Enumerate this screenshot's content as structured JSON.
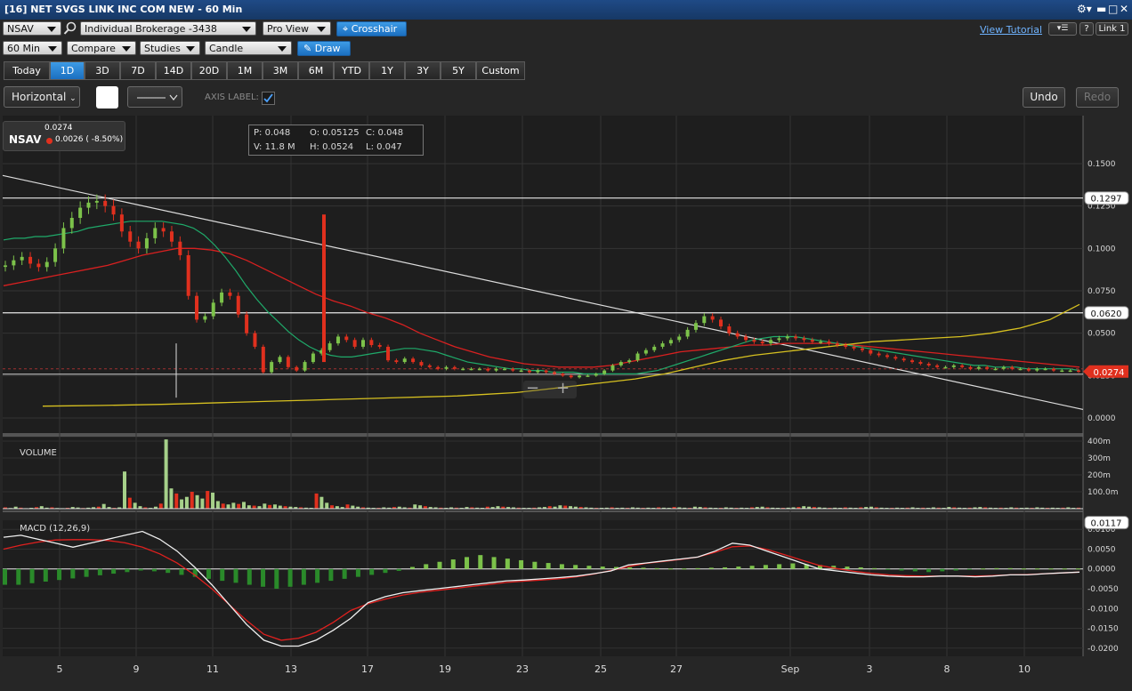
{
  "window": {
    "title": "[16] NET SVGS LINK INC COM NEW - 60 Min"
  },
  "toolbar": {
    "symbol": "NSAV",
    "account": "Individual Brokerage -3438",
    "view": "Pro View",
    "crosshair": "Crosshair",
    "view_tutorial": "View Tutorial",
    "help": "?",
    "link": "Link 1",
    "interval": "60 Min",
    "compare": "Compare",
    "studies": "Studies",
    "chart_type": "Candle",
    "draw": "Draw"
  },
  "ranges": [
    "Today",
    "1D",
    "3D",
    "7D",
    "14D",
    "20D",
    "1M",
    "3M",
    "6M",
    "YTD",
    "1Y",
    "3Y",
    "5Y",
    "Custom"
  ],
  "selected_range": "1D",
  "draw_bar": {
    "line_type": "Horizontal",
    "axis_label": "AXIS LABEL:",
    "axis_label_checked": true,
    "undo": "Undo",
    "redo": "Redo"
  },
  "quote": {
    "symbol": "NSAV",
    "last": "0.0274",
    "change": "0.0026 ( -8.50%)"
  },
  "ohlc": {
    "p": "P: 0.048",
    "o": "O: 0.05125",
    "c": "C: 0.048",
    "v": "V: 11.8 M",
    "h": "H: 0.0524",
    "l": "L: 0.047"
  },
  "colors": {
    "up": "#7cc24a",
    "down": "#e0301e",
    "ma_short": "#1faa6a",
    "ma_long": "#d82020",
    "ma_slow": "#d6c020",
    "accent": "#1b6fc0"
  },
  "chart_data": {
    "type": "candlestick",
    "y_ticks": [
      "0.1500",
      "0.1250",
      "0.1000",
      "0.0750",
      "0.0500",
      "0.0250",
      "0.0000"
    ],
    "ylim": [
      0,
      0.15
    ],
    "x_ticks": [
      "5",
      "9",
      "11",
      "13",
      "17",
      "19",
      "23",
      "25",
      "27",
      "Sep",
      "3",
      "8",
      "10"
    ],
    "price_labels": [
      {
        "value": 0.1297,
        "label": "0.1297",
        "style": "line"
      },
      {
        "value": 0.062,
        "label": "0.0620",
        "style": "line"
      },
      {
        "value": 0.0274,
        "label": "0.0274",
        "style": "last"
      }
    ],
    "trendline": {
      "from": 0.143,
      "to": 0.005
    },
    "close": [
      0.09,
      0.093,
      0.095,
      0.091,
      0.089,
      0.092,
      0.1,
      0.112,
      0.118,
      0.124,
      0.127,
      0.128,
      0.125,
      0.12,
      0.11,
      0.104,
      0.1,
      0.106,
      0.112,
      0.11,
      0.104,
      0.096,
      0.072,
      0.058,
      0.06,
      0.068,
      0.074,
      0.072,
      0.061,
      0.05,
      0.042,
      0.027,
      0.033,
      0.036,
      0.03,
      0.028,
      0.033,
      0.038,
      0.04,
      0.044,
      0.048,
      0.046,
      0.042,
      0.046,
      0.043,
      0.042,
      0.034,
      0.033,
      0.035,
      0.033,
      0.031,
      0.03,
      0.029,
      0.03,
      0.029,
      0.029,
      0.029,
      0.029,
      0.028,
      0.029,
      0.029,
      0.028,
      0.028,
      0.027,
      0.028,
      0.027,
      0.026,
      0.025,
      0.024,
      0.025,
      0.025,
      0.026,
      0.028,
      0.031,
      0.033,
      0.034,
      0.038,
      0.04,
      0.042,
      0.044,
      0.046,
      0.048,
      0.052,
      0.056,
      0.06,
      0.058,
      0.054,
      0.05,
      0.048,
      0.046,
      0.045,
      0.044,
      0.046,
      0.047,
      0.048,
      0.047,
      0.046,
      0.045,
      0.045,
      0.044,
      0.043,
      0.042,
      0.041,
      0.04,
      0.038,
      0.037,
      0.036,
      0.035,
      0.034,
      0.033,
      0.032,
      0.031,
      0.03,
      0.03,
      0.031,
      0.03,
      0.029,
      0.03,
      0.029,
      0.029,
      0.03,
      0.029,
      0.029,
      0.028,
      0.029,
      0.029,
      0.028,
      0.028,
      0.028,
      0.0274
    ],
    "ma_short": [
      0.105,
      0.106,
      0.106,
      0.107,
      0.107,
      0.108,
      0.109,
      0.11,
      0.112,
      0.113,
      0.114,
      0.115,
      0.116,
      0.116,
      0.116,
      0.116,
      0.115,
      0.114,
      0.112,
      0.108,
      0.102,
      0.095,
      0.087,
      0.078,
      0.07,
      0.063,
      0.057,
      0.051,
      0.046,
      0.042,
      0.039,
      0.037,
      0.036,
      0.036,
      0.037,
      0.038,
      0.039,
      0.04,
      0.041,
      0.041,
      0.04,
      0.039,
      0.037,
      0.035,
      0.033,
      0.032,
      0.031,
      0.03,
      0.029,
      0.029,
      0.028,
      0.028,
      0.027,
      0.027,
      0.027,
      0.026,
      0.026,
      0.026,
      0.026,
      0.026,
      0.026,
      0.027,
      0.028,
      0.03,
      0.032,
      0.034,
      0.036,
      0.038,
      0.04,
      0.042,
      0.044,
      0.046,
      0.047,
      0.048,
      0.048,
      0.048,
      0.047,
      0.046,
      0.045,
      0.044,
      0.043,
      0.042,
      0.041,
      0.04,
      0.039,
      0.038,
      0.037,
      0.036,
      0.035,
      0.034,
      0.033,
      0.032,
      0.031,
      0.031,
      0.03,
      0.03,
      0.03,
      0.029,
      0.029,
      0.029,
      0.029,
      0.029,
      0.028
    ],
    "ma_long": [
      0.078,
      0.08,
      0.082,
      0.084,
      0.086,
      0.088,
      0.09,
      0.093,
      0.096,
      0.098,
      0.1,
      0.1,
      0.099,
      0.097,
      0.093,
      0.088,
      0.083,
      0.078,
      0.073,
      0.069,
      0.066,
      0.062,
      0.059,
      0.055,
      0.05,
      0.046,
      0.042,
      0.039,
      0.036,
      0.034,
      0.032,
      0.031,
      0.03,
      0.03,
      0.03,
      0.031,
      0.033,
      0.035,
      0.037,
      0.039,
      0.04,
      0.041,
      0.042,
      0.043,
      0.043,
      0.044,
      0.044,
      0.044,
      0.044,
      0.043,
      0.042,
      0.041,
      0.04,
      0.039,
      0.038,
      0.037,
      0.036,
      0.035,
      0.034,
      0.033,
      0.032,
      0.031,
      0.03
    ],
    "ma_slow": [
      0.007,
      0.0072,
      0.0074,
      0.0077,
      0.008,
      0.0085,
      0.009,
      0.0095,
      0.01,
      0.0105,
      0.011,
      0.0115,
      0.012,
      0.0125,
      0.013,
      0.014,
      0.015,
      0.017,
      0.019,
      0.021,
      0.023,
      0.026,
      0.03,
      0.034,
      0.037,
      0.039,
      0.041,
      0.043,
      0.045,
      0.046,
      0.047,
      0.048,
      0.05,
      0.053,
      0.058,
      0.067
    ],
    "volume": {
      "label": "VOLUME",
      "y_ticks": [
        "400m",
        "300m",
        "200m",
        "100.0m"
      ],
      "ylim": [
        0,
        400
      ],
      "values": [
        8,
        4,
        12,
        6,
        3,
        5,
        9,
        15,
        6,
        8,
        4,
        3,
        5,
        10,
        7,
        4,
        6,
        9,
        12,
        28,
        10,
        5,
        8,
        220,
        65,
        35,
        15,
        8,
        5,
        12,
        30,
        410,
        120,
        90,
        55,
        70,
        100,
        80,
        60,
        105,
        95,
        45,
        30,
        25,
        35,
        28,
        40,
        20,
        18,
        15,
        30,
        22,
        25,
        18,
        15,
        12,
        10,
        8,
        6,
        5,
        90,
        70,
        35,
        20,
        15,
        10,
        25,
        18,
        12,
        8,
        6,
        5,
        5,
        8,
        6,
        10,
        12,
        8,
        6,
        25,
        20,
        15,
        10,
        8,
        6,
        5,
        8,
        6,
        5,
        10,
        8,
        6,
        5,
        12,
        10,
        15,
        12,
        10,
        8,
        6,
        5,
        5,
        6,
        8,
        10,
        15,
        12,
        20,
        18,
        15,
        12,
        10,
        8,
        6,
        5,
        5,
        6,
        8,
        5,
        6,
        5,
        8,
        6,
        5,
        6,
        5,
        8,
        6,
        5,
        10,
        8,
        6,
        5,
        12,
        10,
        8,
        6,
        5,
        5,
        8,
        6,
        5,
        6,
        5,
        8,
        10,
        12,
        8,
        6,
        5,
        5,
        6,
        8,
        10,
        15,
        12,
        10,
        8,
        6,
        5,
        6,
        5,
        8,
        6,
        5,
        8,
        10,
        12,
        8,
        6,
        5,
        5,
        6,
        5,
        6,
        8,
        5,
        6,
        5,
        8,
        6,
        5,
        10,
        8,
        6,
        5,
        6,
        8,
        10,
        8,
        6,
        5,
        6,
        5,
        8,
        6,
        5,
        6,
        5,
        8,
        6,
        5,
        6,
        5,
        6,
        8,
        5,
        6
      ]
    },
    "macd": {
      "label": "MACD (12,26,9)",
      "y_ticks": [
        "0.0100",
        "0.0050",
        "0.0000",
        "-0.0050",
        "-0.0100",
        "-0.0150",
        "-0.0200"
      ],
      "ylim": [
        -0.0205,
        0.0105
      ],
      "last_label": "0.0117",
      "macd_line": [
        0.008,
        0.0085,
        0.0075,
        0.0065,
        0.0055,
        0.0065,
        0.0075,
        0.0085,
        0.0095,
        0.0075,
        0.0045,
        0.0005,
        -0.004,
        -0.009,
        -0.014,
        -0.018,
        -0.0195,
        -0.0195,
        -0.018,
        -0.0155,
        -0.0125,
        -0.0085,
        -0.007,
        -0.006,
        -0.0055,
        -0.005,
        -0.0045,
        -0.004,
        -0.0035,
        -0.003,
        -0.0028,
        -0.0025,
        -0.0022,
        -0.0018,
        -0.0012,
        -0.0005,
        0.001,
        0.0015,
        0.002,
        0.0025,
        0.003,
        0.0045,
        0.0065,
        0.006,
        0.0045,
        0.003,
        0.0015,
        0.0,
        -0.0005,
        -0.001,
        -0.0015,
        -0.0018,
        -0.002,
        -0.002,
        -0.0018,
        -0.0018,
        -0.002,
        -0.0018,
        -0.0015,
        -0.0015,
        -0.0012,
        -0.001,
        -0.0008
      ],
      "signal_line": [
        0.005,
        0.006,
        0.0068,
        0.0073,
        0.0074,
        0.0074,
        0.0072,
        0.0066,
        0.0055,
        0.0038,
        0.0015,
        -0.0015,
        -0.005,
        -0.009,
        -0.013,
        -0.0165,
        -0.018,
        -0.0175,
        -0.016,
        -0.0135,
        -0.0105,
        -0.0088,
        -0.0076,
        -0.0066,
        -0.0059,
        -0.0054,
        -0.0049,
        -0.0044,
        -0.0039,
        -0.0034,
        -0.0031,
        -0.0028,
        -0.0025,
        -0.002,
        -0.0013,
        -0.0004,
        0.0006,
        0.0014,
        0.0019,
        0.0024,
        0.003,
        0.0042,
        0.0056,
        0.0058,
        0.0049,
        0.0036,
        0.0022,
        0.0009,
        0.0001,
        -0.0006,
        -0.0011,
        -0.0015,
        -0.0017,
        -0.0018,
        -0.0018,
        -0.0018,
        -0.0018,
        -0.0017,
        -0.0015,
        -0.0014,
        -0.0012,
        -0.001,
        -0.0008
      ],
      "histogram": [
        -0.004,
        -0.004,
        -0.0036,
        -0.0032,
        -0.0028,
        -0.0024,
        -0.002,
        -0.0016,
        -0.0012,
        -0.0008,
        -0.0004,
        -0.0006,
        -0.001,
        -0.0015,
        -0.002,
        -0.0025,
        -0.003,
        -0.0035,
        -0.004,
        -0.0045,
        -0.005,
        -0.0045,
        -0.004,
        -0.0035,
        -0.003,
        -0.0025,
        -0.002,
        -0.0015,
        -0.001,
        -0.0005,
        0.0005,
        0.0012,
        0.0018,
        0.0024,
        0.003,
        0.0035,
        0.003,
        0.0026,
        0.0022,
        0.0018,
        0.0015,
        0.0012,
        0.001,
        0.0008,
        0.0006,
        0.0005,
        0.0004,
        0.0003,
        0.0002,
        0.0001,
        0.0001,
        0.0002,
        0.0003,
        0.0004,
        0.0006,
        0.0008,
        0.001,
        0.0012,
        0.0014,
        0.0012,
        0.001,
        0.0008,
        0.0006,
        0.0004,
        0.0002,
        -0.0002,
        -0.0004,
        -0.0006,
        -0.0008,
        -0.0006,
        -0.0004,
        -0.0002,
        0.0001,
        0.0002,
        0.0002,
        0.0001,
        0.0001,
        0.0001,
        0.0001,
        0.0001
      ]
    }
  }
}
